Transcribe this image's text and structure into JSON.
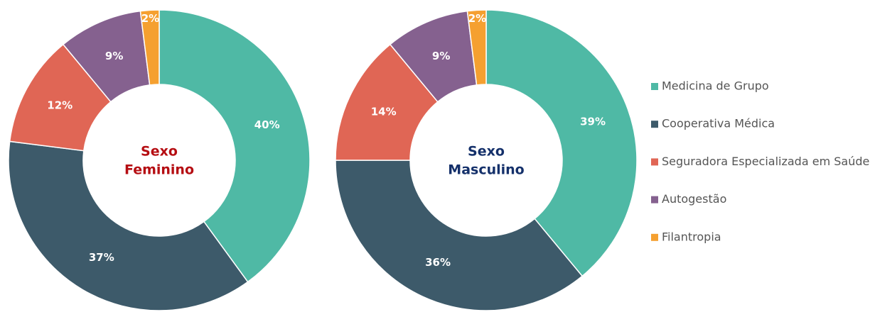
{
  "legend": {
    "items": [
      "Medicina de Grupo",
      "Cooperativa Médica",
      "Seguradora Especializada em Saúde",
      "Autogestão",
      "Filantropia"
    ],
    "colors": [
      "#4fb9a5",
      "#3d5a6a",
      "#e06655",
      "#85618f",
      "#f5a030"
    ]
  },
  "chart_data": [
    {
      "type": "donut",
      "title_lines": [
        "Sexo",
        "Feminino"
      ],
      "title_color": "#b50d12",
      "values": [
        40,
        37,
        12,
        9,
        2
      ],
      "value_labels": [
        "40%",
        "37%",
        "12%",
        "9%",
        "2%"
      ]
    },
    {
      "type": "donut",
      "title_lines": [
        "Sexo",
        "Masculino"
      ],
      "title_color": "#14306a",
      "values": [
        39,
        36,
        14,
        9,
        2
      ],
      "value_labels": [
        "39%",
        "36%",
        "14%",
        "9%",
        "2%"
      ]
    }
  ]
}
